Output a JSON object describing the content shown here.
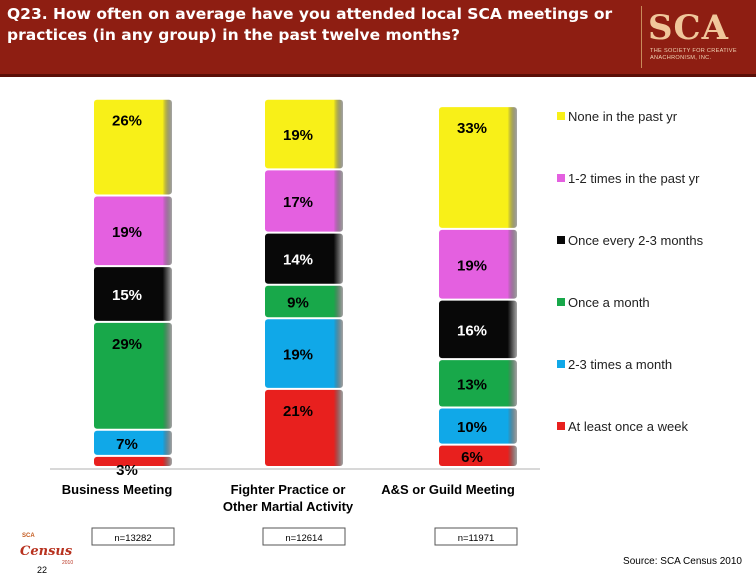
{
  "header": {
    "title": "Q23. How often on average have you attended local SCA meetings or practices (in any group) in the past twelve months?",
    "logo_mark": "SCA",
    "logo_subtitle": "THE SOCIETY FOR CREATIVE ANACHRONISM, INC."
  },
  "footer": {
    "source": "Source: SCA Census 2010",
    "page_number": "22",
    "census_logo_small": "SCA",
    "census_logo_text": "Census",
    "census_logo_year": "2010"
  },
  "chart_data": {
    "type": "bar",
    "stacked": true,
    "normalized_percent": true,
    "categories": [
      "Business Meeting",
      "Fighter Practice or Other Martial Activity",
      "A&S or Guild Meeting"
    ],
    "category_lines": [
      [
        "Business Meeting"
      ],
      [
        "Fighter Practice or",
        "Other Martial Activity"
      ],
      [
        "A&S or Guild Meeting"
      ]
    ],
    "sample_sizes": [
      "n=13282",
      "n=12614",
      "n=11971"
    ],
    "series": [
      {
        "name": "At least once a week",
        "color": "#e8201e",
        "values": [
          3,
          21,
          6
        ]
      },
      {
        "name": "2-3 times a month",
        "color": "#10a8e8",
        "values": [
          7,
          19,
          10
        ]
      },
      {
        "name": "Once a month",
        "color": "#18a84a",
        "values": [
          29,
          9,
          13
        ]
      },
      {
        "name": "Once every 2-3 months",
        "color": "#080808",
        "values": [
          15,
          14,
          16
        ]
      },
      {
        "name": "1-2 times in the past yr",
        "color": "#e460e0",
        "values": [
          19,
          17,
          19
        ]
      },
      {
        "name": "None in the past yr",
        "color": "#f8f018",
        "values": [
          26,
          19,
          33
        ]
      }
    ],
    "data_labels": [
      [
        "3%",
        "7%",
        "29%",
        "15%",
        "19%",
        "26%"
      ],
      [
        "21%",
        "19%",
        "9%",
        "14%",
        "17%",
        "19%"
      ],
      [
        "6%",
        "10%",
        "13%",
        "16%",
        "19%",
        "33%"
      ]
    ],
    "legend_position": "right",
    "grid": false
  }
}
